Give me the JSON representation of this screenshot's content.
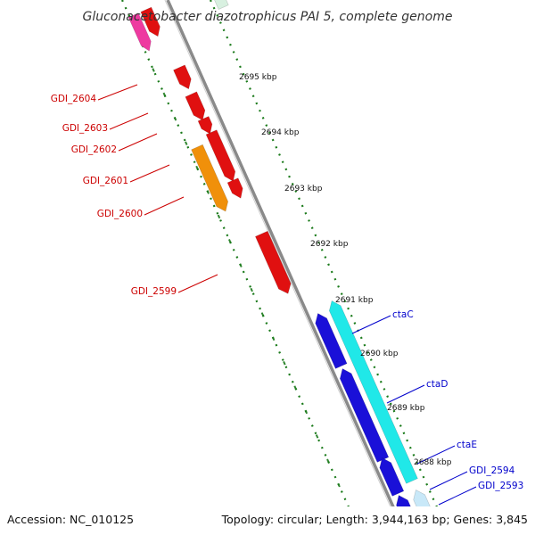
{
  "map": {
    "title": "Gluconacetobacter diazotrophicus PAI 5, complete genome",
    "accession": "Accession: NC_010125",
    "topology": "Topology: circular; Length: 3,944,163 bp; Genes: 3,845"
  },
  "colors": {
    "backbone": "#8a8a8a",
    "dots": "#1a7a1a",
    "forward_gene": "#e01010",
    "forward_alt": "#f0900a",
    "reverse_gene": "#1a10d8",
    "reverse_alt": "#20e8e8",
    "forward_label": "#cc0000",
    "reverse_label": "#0000cc",
    "pink": "#ee3aa0"
  },
  "ticks": [
    {
      "label": "2695 kbp"
    },
    {
      "label": "2694 kbp"
    },
    {
      "label": "2693 kbp"
    },
    {
      "label": "2692 kbp"
    },
    {
      "label": "2691 kbp"
    },
    {
      "label": "2690 kbp"
    },
    {
      "label": "2689 kbp"
    },
    {
      "label": "2688 kbp"
    }
  ],
  "genes": [
    {
      "name": "GDI_2604",
      "strand": "forward"
    },
    {
      "name": "GDI_2603",
      "strand": "forward"
    },
    {
      "name": "GDI_2602",
      "strand": "forward"
    },
    {
      "name": "GDI_2601",
      "strand": "forward"
    },
    {
      "name": "GDI_2600",
      "strand": "forward"
    },
    {
      "name": "GDI_2599",
      "strand": "forward"
    },
    {
      "name": "ctaC",
      "strand": "reverse"
    },
    {
      "name": "ctaD",
      "strand": "reverse"
    },
    {
      "name": "ctaE",
      "strand": "reverse"
    },
    {
      "name": "GDI_2594",
      "strand": "reverse"
    },
    {
      "name": "GDI_2593",
      "strand": "reverse"
    }
  ]
}
